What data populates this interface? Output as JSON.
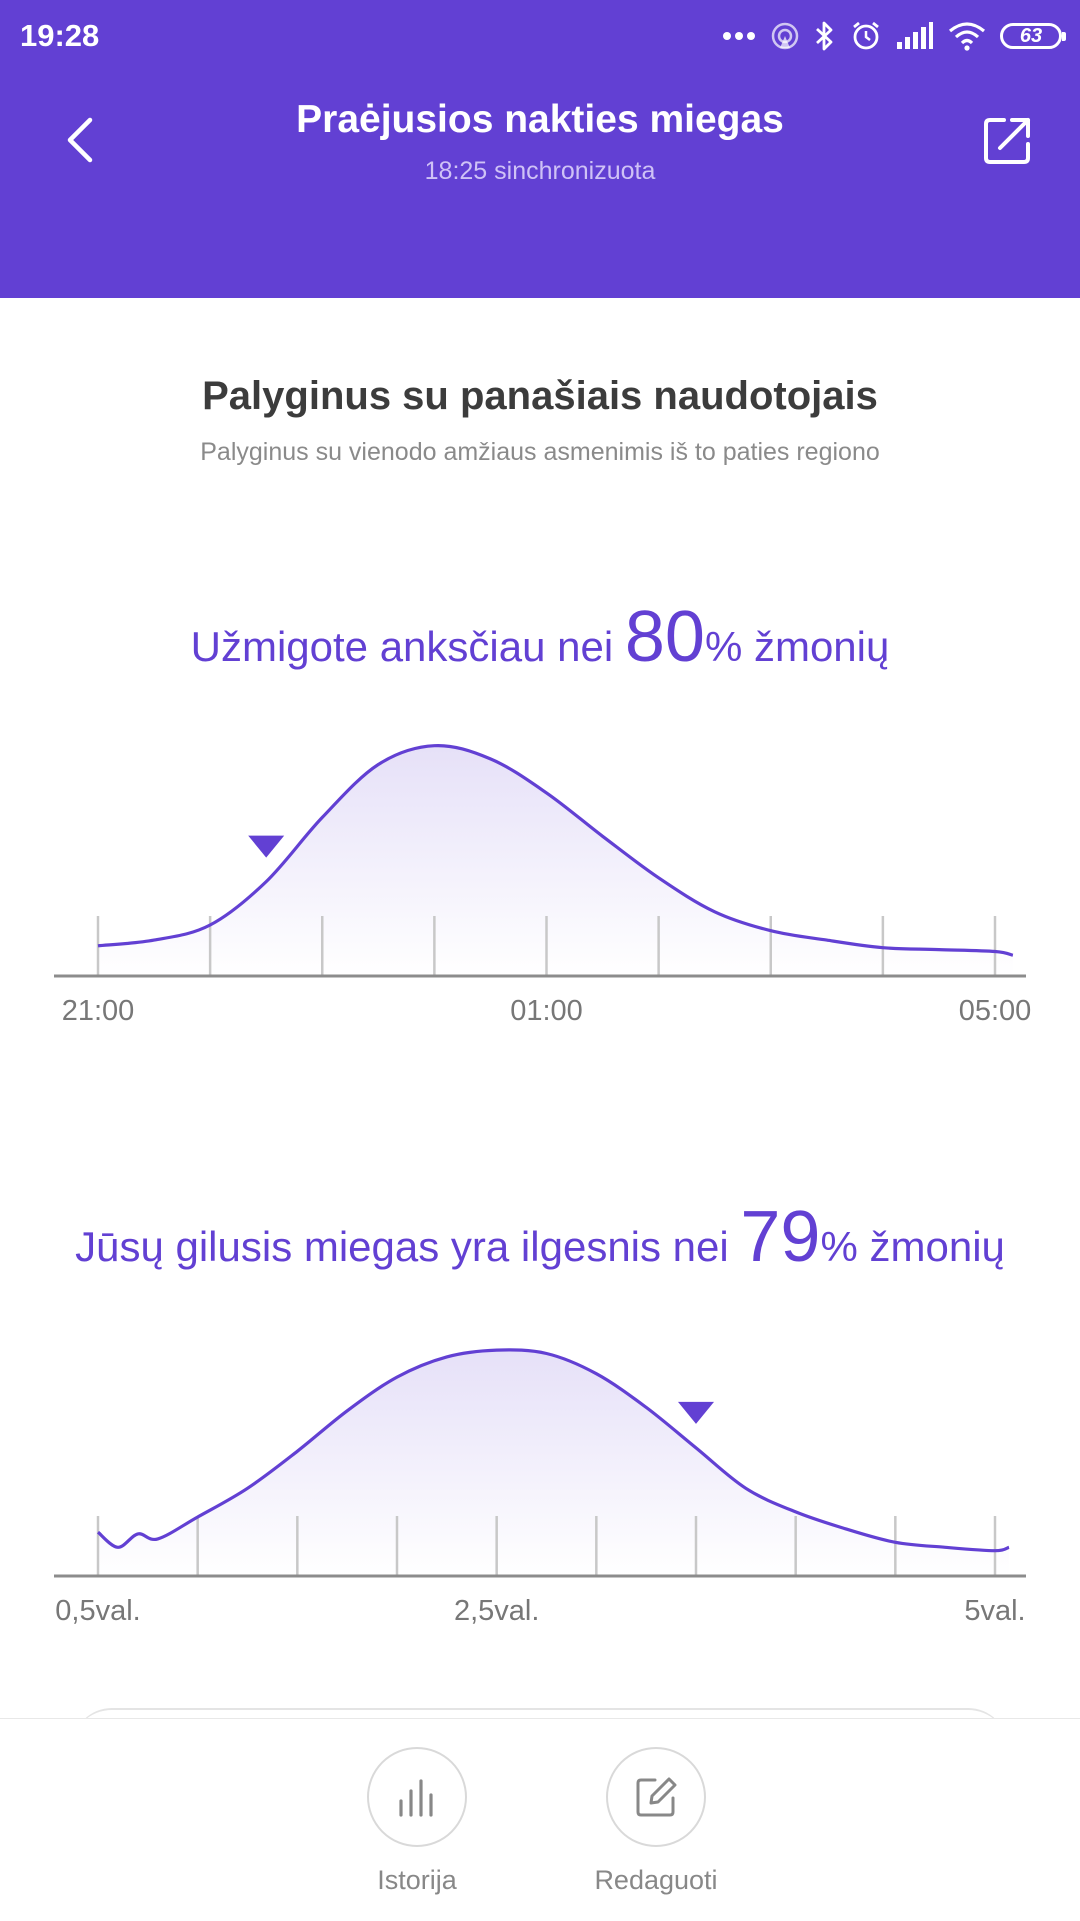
{
  "status_bar": {
    "time": "19:28",
    "battery": "63"
  },
  "header": {
    "title": "Praėjusios nakties miegas",
    "subtitle": "18:25 sinchronizuota"
  },
  "section": {
    "title": "Palyginus su panašiais naudotojais",
    "subtitle": "Palyginus su vienodo amžiaus asmenimis iš to paties regiono"
  },
  "comparison_1": {
    "text_before": "Užmigote anksčiau nei ",
    "value": "80",
    "text_after": "% žmonių"
  },
  "comparison_2": {
    "text_before": "Jūsų gilusis miegas yra ilgesnis nei ",
    "value": "79",
    "text_after": "% žmonių"
  },
  "bottom_bar": {
    "history_label": "Istorija",
    "edit_label": "Redaguoti"
  },
  "colors": {
    "accent": "#6240d3",
    "header_bg": "#6240d3"
  },
  "chart_data": [
    {
      "type": "area",
      "x_unit": "hours",
      "x": [
        0,
        0.5,
        1,
        1.5,
        2,
        2.5,
        3,
        3.5,
        4,
        4.5,
        5,
        5.5,
        6,
        6.5,
        7,
        7.5,
        8,
        8.16
      ],
      "values": [
        0.16,
        0.19,
        0.27,
        0.5,
        0.84,
        1.12,
        1.22,
        1.15,
        0.97,
        0.74,
        0.52,
        0.34,
        0.24,
        0.19,
        0.15,
        0.14,
        0.13,
        0.11
      ],
      "xlim": [
        0,
        8.16
      ],
      "ticks": [
        0,
        1,
        2,
        3,
        4,
        5,
        6,
        7,
        8
      ],
      "tick_labels": [
        {
          "at": 0,
          "label": "21:00"
        },
        {
          "at": 4,
          "label": "01:00"
        },
        {
          "at": 8,
          "label": "05:00"
        }
      ],
      "marker_x": 1.5,
      "ylim": [
        0,
        1.25
      ]
    },
    {
      "type": "area",
      "x_unit": "hours",
      "x": [
        0.5,
        0.6,
        0.7,
        0.8,
        1.0,
        1.25,
        1.5,
        1.75,
        2.0,
        2.25,
        2.5,
        2.75,
        3.0,
        3.25,
        3.5,
        3.75,
        4.0,
        4.25,
        4.5,
        4.75,
        5.0,
        5.07
      ],
      "values": [
        0.26,
        0.17,
        0.25,
        0.22,
        0.35,
        0.52,
        0.74,
        0.98,
        1.18,
        1.3,
        1.34,
        1.32,
        1.2,
        1.0,
        0.76,
        0.52,
        0.38,
        0.28,
        0.2,
        0.17,
        0.15,
        0.17
      ],
      "xlim": [
        0.5,
        5.07
      ],
      "ticks": [
        0.5,
        1.0,
        1.5,
        2.0,
        2.5,
        3.0,
        3.5,
        4.0,
        4.5,
        5.0
      ],
      "tick_labels": [
        {
          "at": 0.5,
          "label": "0,5val."
        },
        {
          "at": 2.5,
          "label": "2,5val."
        },
        {
          "at": 5.0,
          "label": "5val."
        }
      ],
      "marker_x": 3.5,
      "ylim": [
        0,
        1.4
      ]
    }
  ]
}
